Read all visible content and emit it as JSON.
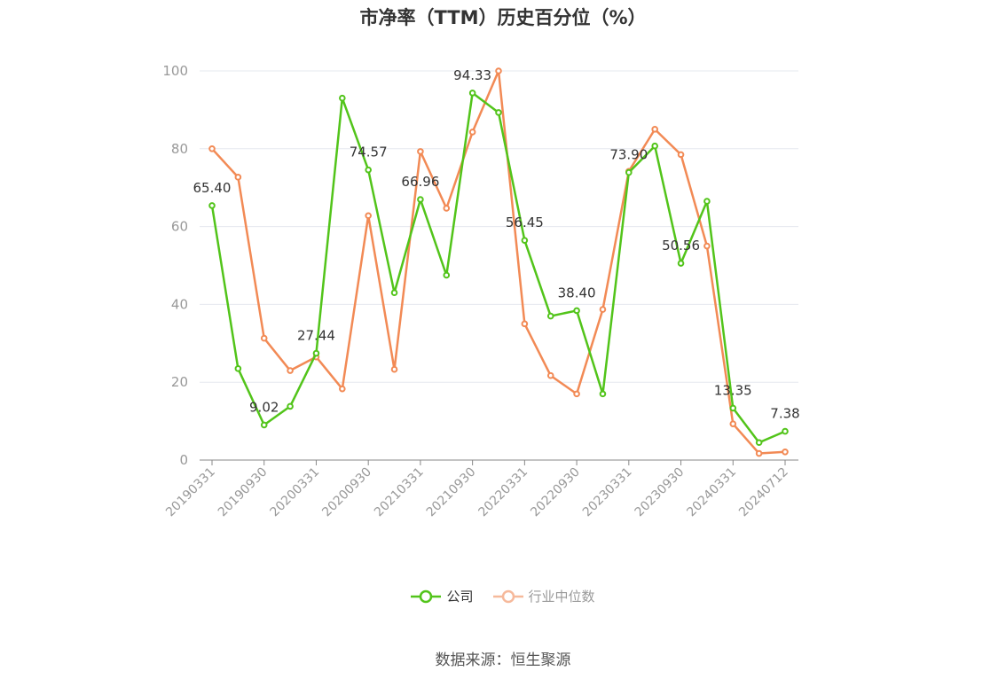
{
  "colors": {
    "company": "#52c41a",
    "industry": "#f28a55",
    "industry_legend": "#f6b99b",
    "grid": "#e6e8ef",
    "axis": "#888888",
    "tick_text": "#999999",
    "label_text": "#333333"
  },
  "legend": {
    "company": "公司",
    "industry": "行业中位数"
  },
  "source": "数据来源：恒生聚源",
  "chart_data": {
    "type": "line",
    "title": "市净率（TTM）历史百分位（%）",
    "ylim": [
      0,
      100
    ],
    "yticks": [
      0,
      20,
      40,
      60,
      80,
      100
    ],
    "grid": "horizontal",
    "legend_position": "bottom",
    "x": [
      "20190331",
      "20190630",
      "20190930",
      "20191231",
      "20200331",
      "20200630",
      "20200930",
      "20201231",
      "20210331",
      "20210630",
      "20210930",
      "20211231",
      "20220331",
      "20220630",
      "20220930",
      "20221231",
      "20230331",
      "20230630",
      "20230930",
      "20231231",
      "20240331",
      "20240630",
      "20240712"
    ],
    "xtick_labels": [
      "20190331",
      "20190930",
      "20200331",
      "20200930",
      "20210331",
      "20210930",
      "20220331",
      "20220930",
      "20230331",
      "20230930",
      "20240331",
      "20240712"
    ],
    "series": [
      {
        "name": "公司",
        "values": [
          65.4,
          23.5,
          9.02,
          13.8,
          27.44,
          93.0,
          74.57,
          43.0,
          66.96,
          47.5,
          94.33,
          89.3,
          56.45,
          37.0,
          38.4,
          17.0,
          73.9,
          80.7,
          50.56,
          66.5,
          13.35,
          4.5,
          7.38
        ],
        "labels": [
          "65.40",
          null,
          "9.02",
          null,
          "27.44",
          null,
          "74.57",
          null,
          "66.96",
          null,
          "94.33",
          null,
          "56.45",
          null,
          "38.40",
          null,
          "73.90",
          null,
          "50.56",
          null,
          "13.35",
          null,
          "7.38"
        ]
      },
      {
        "name": "行业中位数",
        "values": [
          80.0,
          72.7,
          31.3,
          23.0,
          26.5,
          18.3,
          62.8,
          23.3,
          79.3,
          64.7,
          84.3,
          100.0,
          35.0,
          21.7,
          17.0,
          38.7,
          74.2,
          85.0,
          78.5,
          55.0,
          9.3,
          1.7,
          2.1
        ]
      }
    ]
  }
}
